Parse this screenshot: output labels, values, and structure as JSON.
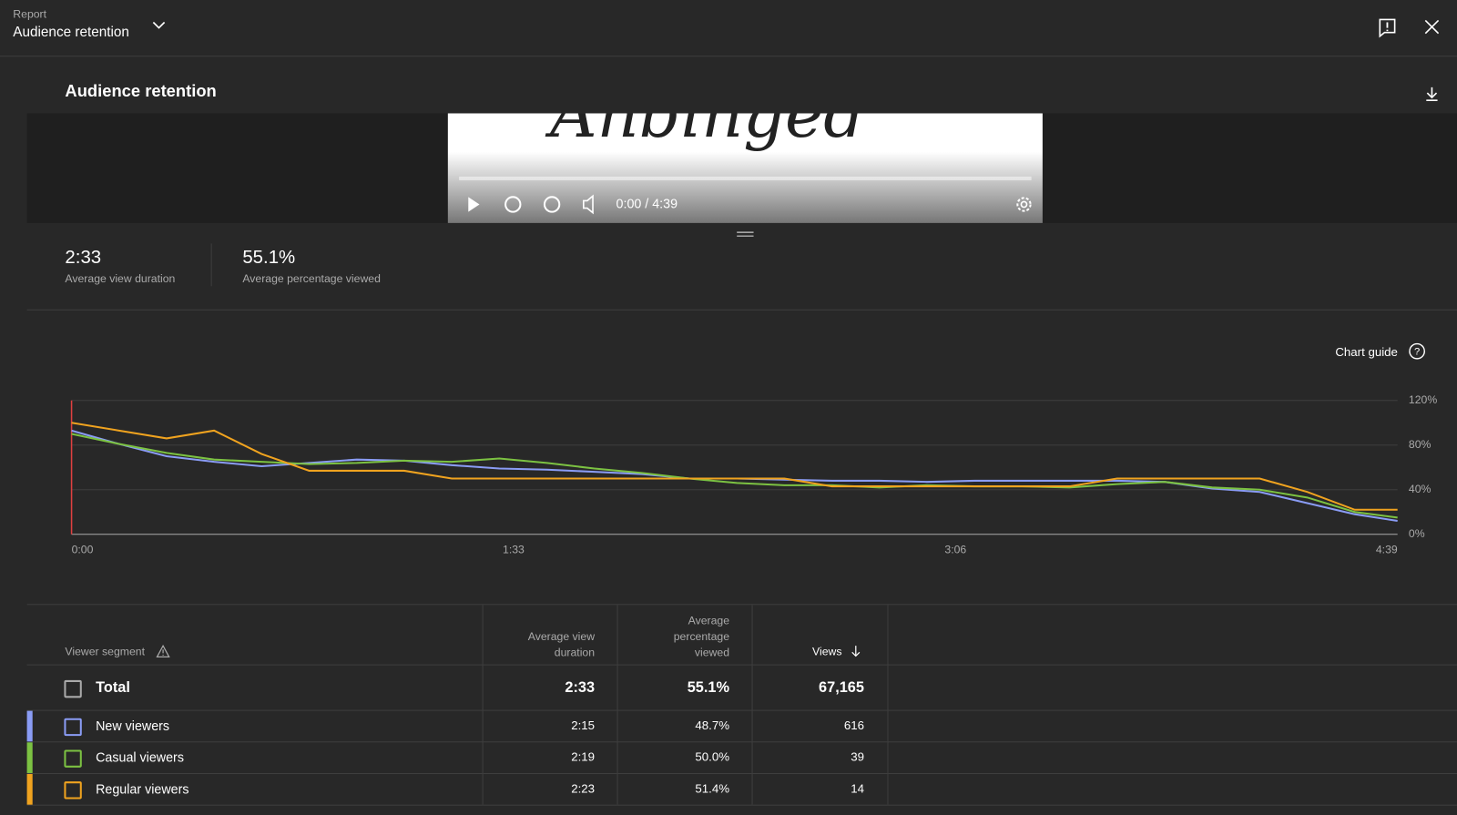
{
  "header": {
    "label": "Report",
    "title": "Audience retention"
  },
  "section_title": "Audience retention",
  "player": {
    "time": "0:00 / 4:39"
  },
  "summary": [
    {
      "value": "2:33",
      "label": "Average view duration"
    },
    {
      "value": "55.1%",
      "label": "Average percentage viewed"
    }
  ],
  "chart_guide": "Chart guide",
  "chart_data": {
    "type": "line",
    "x": [
      0,
      10,
      20,
      30,
      40,
      50,
      60,
      70,
      80,
      90,
      100,
      110,
      120,
      130,
      140,
      150,
      160,
      170,
      180,
      190,
      200,
      210,
      220,
      230,
      240,
      250,
      260,
      270,
      279
    ],
    "xlim": [
      0,
      279
    ],
    "xticks": [
      {
        "value": 0,
        "label": "0:00"
      },
      {
        "value": 93,
        "label": "1:33"
      },
      {
        "value": 186,
        "label": "3:06"
      },
      {
        "value": 279,
        "label": "4:39"
      }
    ],
    "ylim": [
      0,
      120
    ],
    "yticks": [
      {
        "value": 0,
        "label": "0%"
      },
      {
        "value": 40,
        "label": "40%"
      },
      {
        "value": 80,
        "label": "80%"
      },
      {
        "value": 120,
        "label": "120%"
      }
    ],
    "grid": true,
    "series": [
      {
        "name": "New viewers",
        "color": "#8a9cf5",
        "values": [
          93,
          81,
          70,
          65,
          61,
          64,
          67,
          66,
          62,
          59,
          58,
          56,
          54,
          50,
          50,
          49,
          48,
          48,
          47,
          48,
          48,
          48,
          48,
          47,
          41,
          38,
          28,
          18,
          12
        ]
      },
      {
        "name": "Casual viewers",
        "color": "#7cc242",
        "values": [
          90,
          81,
          73,
          67,
          65,
          63,
          64,
          66,
          65,
          68,
          64,
          59,
          55,
          50,
          46,
          44,
          44,
          42,
          44,
          43,
          43,
          42,
          45,
          47,
          42,
          40,
          33,
          20,
          15
        ]
      },
      {
        "name": "Regular viewers",
        "color": "#f0a31f",
        "values": [
          100,
          93,
          86,
          93,
          72,
          57,
          57,
          57,
          50,
          50,
          50,
          50,
          50,
          50,
          50,
          50,
          43,
          43,
          43,
          43,
          43,
          43,
          50,
          50,
          50,
          50,
          38,
          22,
          22
        ]
      }
    ]
  },
  "table": {
    "headers": [
      "Viewer segment",
      "Average view duration",
      "Average percentage viewed",
      "Views"
    ],
    "total": [
      "Total",
      "2:33",
      "55.1%",
      "67,165"
    ],
    "rows": [
      [
        "2:15",
        "48.7%",
        "616"
      ],
      [
        "2:19",
        "50.0%",
        "39"
      ],
      [
        "2:23",
        "51.4%",
        "14"
      ]
    ]
  }
}
